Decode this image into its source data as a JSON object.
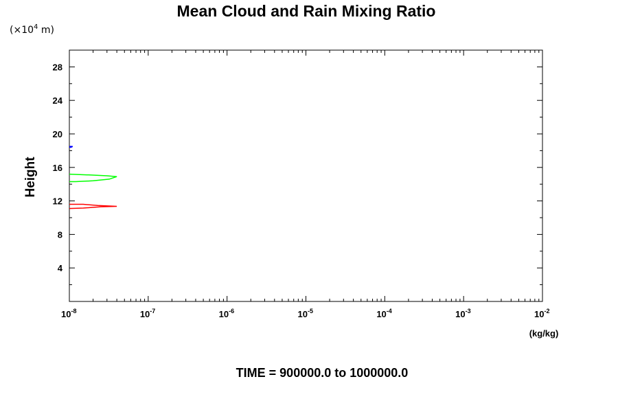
{
  "chart_data": {
    "type": "line",
    "title": "Mean Cloud and Rain Mixing Ratio",
    "ylabel": "Height",
    "y_scale_label": {
      "prefix": "(×10",
      "exponent": "4",
      "suffix": " m)"
    },
    "xlabel": "(kg/kg)",
    "footer": "TIME = 900000.0 to 1000000.0",
    "x_scale": "log",
    "xlim": [
      1e-08,
      0.01
    ],
    "ylim": [
      0,
      30
    ],
    "x_ticks": [
      {
        "value": 1e-08,
        "base": "10",
        "exp": "-8"
      },
      {
        "value": 1e-07,
        "base": "10",
        "exp": "-7"
      },
      {
        "value": 1e-06,
        "base": "10",
        "exp": "-6"
      },
      {
        "value": 1e-05,
        "base": "10",
        "exp": "-5"
      },
      {
        "value": 0.0001,
        "base": "10",
        "exp": "-4"
      },
      {
        "value": 0.001,
        "base": "10",
        "exp": "-3"
      },
      {
        "value": 0.01,
        "base": "10",
        "exp": "-2"
      }
    ],
    "y_ticks": [
      {
        "value": 4,
        "label": "4"
      },
      {
        "value": 8,
        "label": "8"
      },
      {
        "value": 12,
        "label": "12"
      },
      {
        "value": 16,
        "label": "16"
      },
      {
        "value": 20,
        "label": "20"
      },
      {
        "value": 24,
        "label": "24"
      },
      {
        "value": 28,
        "label": "28"
      }
    ],
    "series": [
      {
        "color": "#0000ff",
        "points": [
          [
            1e-08,
            18.5
          ],
          [
            1.1e-08,
            18.5
          ],
          [
            1.05e-08,
            18.4
          ],
          [
            1e-08,
            18.4
          ]
        ]
      },
      {
        "color": "#00ff00",
        "points": [
          [
            1e-08,
            15.2
          ],
          [
            1.8e-08,
            15.1
          ],
          [
            3e-08,
            15.0
          ],
          [
            4e-08,
            14.9
          ],
          [
            3.2e-08,
            14.6
          ],
          [
            2e-08,
            14.4
          ],
          [
            1.2e-08,
            14.3
          ],
          [
            1e-08,
            14.3
          ]
        ]
      },
      {
        "color": "#ff0000",
        "points": [
          [
            1e-08,
            11.6
          ],
          [
            1.5e-08,
            11.6
          ],
          [
            2.3e-08,
            11.45
          ],
          [
            4e-08,
            11.35
          ],
          [
            2.5e-08,
            11.3
          ],
          [
            1.5e-08,
            11.15
          ],
          [
            1e-08,
            11.1
          ]
        ]
      }
    ]
  }
}
